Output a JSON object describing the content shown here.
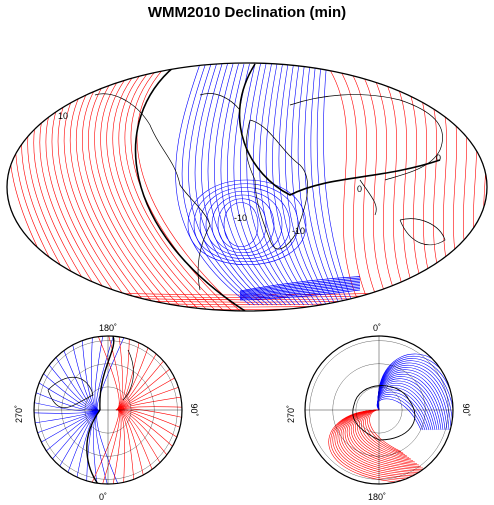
{
  "title": "WMM2010 Declination (min)",
  "colors": {
    "positive": "#ff0000",
    "negative": "#0000ff",
    "zero": "#000000",
    "coast": "#000000"
  },
  "main_map": {
    "projection": "mollweide",
    "contour_labels": [
      "10",
      "0",
      "-10",
      "-10",
      "0"
    ]
  },
  "north_polar": {
    "labels": {
      "top": "180˚",
      "bottom": "0˚",
      "left": "270˚",
      "right": "90˚"
    }
  },
  "south_polar": {
    "labels": {
      "top": "0˚",
      "bottom": "180˚",
      "left": "270˚",
      "right": "90˚"
    }
  }
}
